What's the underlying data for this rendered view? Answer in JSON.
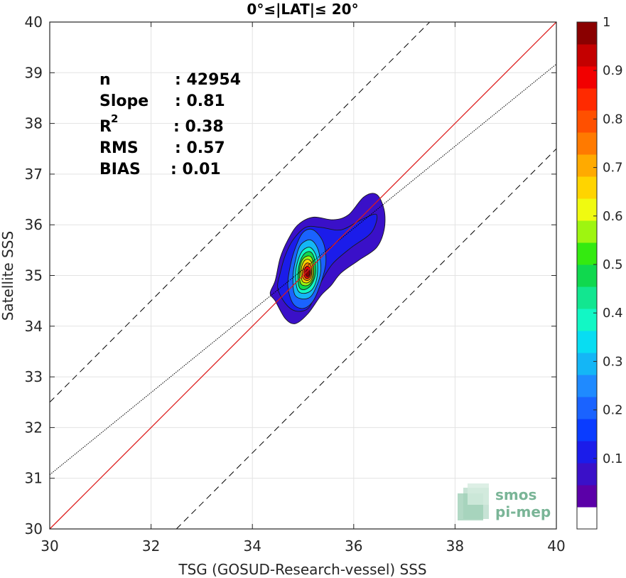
{
  "chart_data": {
    "type": "contour",
    "title": "0°≤|LAT|≤ 20°",
    "xlabel": "TSG (GOSUD-Research-vessel) SSS",
    "ylabel": "Satellite SSS",
    "xlim": [
      30,
      40
    ],
    "ylim": [
      30,
      40
    ],
    "xticks": [
      "30",
      "32",
      "34",
      "36",
      "38",
      "40"
    ],
    "yticks": [
      "30",
      "31",
      "32",
      "33",
      "34",
      "35",
      "36",
      "37",
      "38",
      "39",
      "40"
    ],
    "grid": true,
    "stats": [
      {
        "label": "n",
        "value": ": 42954"
      },
      {
        "label": "Slope",
        "value": ": 0.81"
      },
      {
        "label": "R",
        "sup": "2",
        "value": ": 0.38"
      },
      {
        "label": "RMS",
        "value": ": 0.57"
      },
      {
        "label": "BIAS",
        "value": ": 0.01"
      }
    ],
    "lines": {
      "identity": {
        "slope": 1,
        "intercept": 0,
        "color": "#dd1c1c",
        "style": "solid"
      },
      "regression": {
        "slope": 0.81,
        "intercept": 6.77,
        "color": "#000000",
        "style": "dotted"
      },
      "upper_band": {
        "slope": 1,
        "intercept": 2.5,
        "color": "#000000",
        "style": "dashed"
      },
      "lower_band": {
        "slope": 1,
        "intercept": -2.5,
        "color": "#000000",
        "style": "dashed"
      }
    },
    "density_peak": {
      "x": 35.1,
      "y": 35.05
    },
    "colorbar": {
      "ticks": [
        "0.1",
        "0.2",
        "0.3",
        "0.4",
        "0.5",
        "0.6",
        "0.7",
        "0.8",
        "0.9",
        "1"
      ],
      "range": [
        0,
        1
      ],
      "colors": [
        "#ffffff",
        "#5b00a8",
        "#3a10c8",
        "#1b1cea",
        "#0a3cff",
        "#1a63ff",
        "#1f8aff",
        "#14b6f6",
        "#08ddf2",
        "#12f7c5",
        "#12e690",
        "#10d84e",
        "#34ea10",
        "#9ef510",
        "#f0fa10",
        "#ffd400",
        "#ffaa00",
        "#ff7a00",
        "#ff5000",
        "#ff2a00",
        "#f20000",
        "#c40000",
        "#8a0000"
      ]
    },
    "contours": [
      {
        "level": 0.05,
        "color": "#3a10c8",
        "points": [
          [
            34.45,
            34.5
          ],
          [
            34.35,
            34.65
          ],
          [
            34.45,
            34.9
          ],
          [
            34.55,
            35.35
          ],
          [
            34.7,
            35.7
          ],
          [
            34.9,
            36.0
          ],
          [
            35.2,
            36.15
          ],
          [
            35.6,
            36.1
          ],
          [
            35.9,
            36.2
          ],
          [
            36.2,
            36.55
          ],
          [
            36.45,
            36.6
          ],
          [
            36.6,
            36.3
          ],
          [
            36.6,
            35.9
          ],
          [
            36.45,
            35.55
          ],
          [
            36.1,
            35.3
          ],
          [
            35.75,
            35.05
          ],
          [
            35.55,
            34.8
          ],
          [
            35.35,
            34.6
          ],
          [
            35.1,
            34.25
          ],
          [
            34.85,
            34.05
          ],
          [
            34.65,
            34.15
          ]
        ]
      },
      {
        "level": 0.1,
        "color": "#1b1cea",
        "points": [
          [
            34.5,
            34.75
          ],
          [
            34.55,
            35.05
          ],
          [
            34.65,
            35.4
          ],
          [
            34.8,
            35.7
          ],
          [
            35.05,
            35.95
          ],
          [
            35.35,
            35.95
          ],
          [
            35.75,
            35.9
          ],
          [
            36.15,
            36.1
          ],
          [
            36.45,
            36.2
          ],
          [
            36.35,
            35.85
          ],
          [
            35.95,
            35.55
          ],
          [
            35.6,
            35.25
          ],
          [
            35.4,
            34.95
          ],
          [
            35.25,
            34.65
          ],
          [
            35.1,
            34.35
          ],
          [
            34.85,
            34.3
          ],
          [
            34.65,
            34.45
          ]
        ]
      },
      {
        "level": 0.2,
        "color": "#1a63ff",
        "points": [
          [
            34.8,
            34.45
          ],
          [
            34.7,
            34.8
          ],
          [
            34.75,
            35.2
          ],
          [
            34.85,
            35.55
          ],
          [
            35.0,
            35.85
          ],
          [
            35.2,
            35.9
          ],
          [
            35.4,
            35.65
          ],
          [
            35.45,
            35.25
          ],
          [
            35.35,
            34.85
          ],
          [
            35.2,
            34.5
          ],
          [
            35.0,
            34.35
          ]
        ]
      },
      {
        "level": 0.3,
        "color": "#14b6f6",
        "points": [
          [
            34.85,
            34.6
          ],
          [
            34.8,
            34.95
          ],
          [
            34.85,
            35.3
          ],
          [
            34.95,
            35.6
          ],
          [
            35.15,
            35.7
          ],
          [
            35.3,
            35.5
          ],
          [
            35.35,
            35.1
          ],
          [
            35.25,
            34.75
          ],
          [
            35.1,
            34.55
          ]
        ]
      },
      {
        "level": 0.4,
        "color": "#12f7c5",
        "points": [
          [
            34.9,
            34.7
          ],
          [
            34.85,
            35.0
          ],
          [
            34.9,
            35.3
          ],
          [
            35.0,
            35.5
          ],
          [
            35.15,
            35.55
          ],
          [
            35.27,
            35.35
          ],
          [
            35.28,
            35.0
          ],
          [
            35.2,
            34.75
          ],
          [
            35.05,
            34.65
          ]
        ]
      },
      {
        "level": 0.5,
        "color": "#10d84e",
        "points": [
          [
            34.92,
            34.78
          ],
          [
            34.9,
            35.05
          ],
          [
            34.95,
            35.3
          ],
          [
            35.05,
            35.45
          ],
          [
            35.17,
            35.45
          ],
          [
            35.24,
            35.25
          ],
          [
            35.24,
            35.0
          ],
          [
            35.15,
            34.8
          ],
          [
            35.02,
            34.72
          ]
        ]
      },
      {
        "level": 0.6,
        "color": "#9ef510",
        "points": [
          [
            34.95,
            34.85
          ],
          [
            34.93,
            35.05
          ],
          [
            34.97,
            35.28
          ],
          [
            35.07,
            35.38
          ],
          [
            35.17,
            35.35
          ],
          [
            35.21,
            35.15
          ],
          [
            35.2,
            34.95
          ],
          [
            35.12,
            34.82
          ],
          [
            35.03,
            34.8
          ]
        ]
      },
      {
        "level": 0.7,
        "color": "#ffd400",
        "points": [
          [
            34.98,
            34.9
          ],
          [
            34.96,
            35.08
          ],
          [
            35.0,
            35.25
          ],
          [
            35.08,
            35.32
          ],
          [
            35.16,
            35.27
          ],
          [
            35.19,
            35.1
          ],
          [
            35.17,
            34.93
          ],
          [
            35.1,
            34.86
          ],
          [
            35.03,
            34.86
          ]
        ]
      },
      {
        "level": 0.8,
        "color": "#ff7a00",
        "points": [
          [
            35.0,
            34.95
          ],
          [
            34.99,
            35.08
          ],
          [
            35.03,
            35.2
          ],
          [
            35.09,
            35.25
          ],
          [
            35.15,
            35.2
          ],
          [
            35.17,
            35.07
          ],
          [
            35.15,
            34.95
          ],
          [
            35.08,
            34.9
          ]
        ]
      },
      {
        "level": 0.9,
        "color": "#f20000",
        "points": [
          [
            35.03,
            34.98
          ],
          [
            35.02,
            35.08
          ],
          [
            35.05,
            35.16
          ],
          [
            35.1,
            35.18
          ],
          [
            35.14,
            35.13
          ],
          [
            35.15,
            35.04
          ],
          [
            35.12,
            34.96
          ],
          [
            35.07,
            34.94
          ]
        ]
      },
      {
        "level": 1.0,
        "color": "#8a0000",
        "points": [
          [
            35.06,
            35.0
          ],
          [
            35.05,
            35.07
          ],
          [
            35.08,
            35.12
          ],
          [
            35.12,
            35.1
          ],
          [
            35.13,
            35.03
          ],
          [
            35.1,
            34.98
          ]
        ]
      }
    ],
    "watermark": [
      "smos",
      "pi-mep"
    ]
  }
}
